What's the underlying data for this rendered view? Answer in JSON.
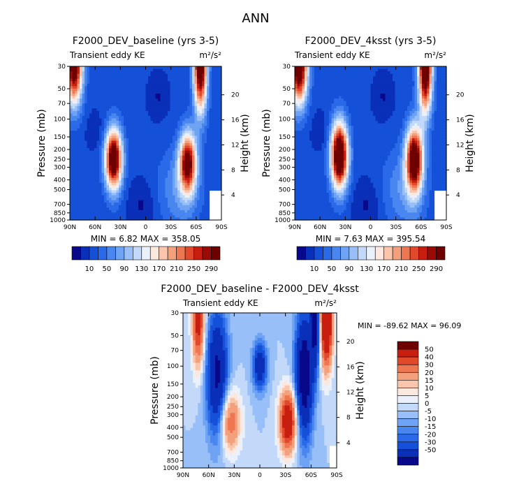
{
  "page_title": "ANN",
  "colors": {
    "scale": [
      "#08088a",
      "#0a2fb8",
      "#1550d8",
      "#2a6ae8",
      "#4a86f0",
      "#6fa3f4",
      "#98bff7",
      "#c3d9f9",
      "#eaf1fb",
      "#fde8df",
      "#f9c6ad",
      "#f4a07c",
      "#ee7650",
      "#e1492d",
      "#c81e10",
      "#9c0a05",
      "#6e0000"
    ],
    "diff_scale": [
      "#08088a",
      "#0a2fb8",
      "#1550d8",
      "#2a6ae8",
      "#4a86f0",
      "#6fa3f4",
      "#98bff7",
      "#c3d9f9",
      "#eaf1fb",
      "#fde8df",
      "#f9c6ad",
      "#f4a07c",
      "#ee7650",
      "#e1492d",
      "#c81e10",
      "#6e0000"
    ]
  },
  "chart_data": [
    {
      "type": "heatmap",
      "title": "F2000_DEV_baseline (yrs 3-5)",
      "subtitle_left": "Transient eddy KE",
      "units": "m²/s²",
      "ylabel": "Pressure (mb)",
      "ylabel_right": "Height (km)",
      "x_ticks": [
        "90N",
        "60N",
        "30N",
        "0",
        "30S",
        "60S",
        "90S"
      ],
      "x_values": [
        90,
        60,
        30,
        0,
        -30,
        -60,
        -90
      ],
      "y_ticks": [
        "30",
        "50",
        "70",
        "100",
        "150",
        "200",
        "250",
        "300",
        "400",
        "500",
        "700",
        "850",
        "1000"
      ],
      "y_values": [
        30,
        50,
        70,
        100,
        150,
        200,
        250,
        300,
        400,
        500,
        700,
        850,
        1000
      ],
      "height_ticks": [
        "20",
        "16",
        "12",
        "8",
        "4"
      ],
      "height_values": [
        20,
        16,
        12,
        8,
        4
      ],
      "stats": "MIN =     6.82   MAX =  358.05",
      "min": 6.82,
      "max": 358.05,
      "colorbar_labels": [
        "10",
        "50",
        "90",
        "130",
        "170",
        "210",
        "250",
        "290"
      ],
      "blobs": [
        {
          "lat": 38,
          "p": 250,
          "amp": 340,
          "slat": 10,
          "sz": 0.2
        },
        {
          "lat": -50,
          "p": 270,
          "amp": 290,
          "slat": 10,
          "sz": 0.2
        },
        {
          "lat": 85,
          "p": 30,
          "amp": 320,
          "slat": 10,
          "sz": 0.25
        },
        {
          "lat": -65,
          "p": 30,
          "amp": 330,
          "slat": 8,
          "sz": 0.3
        }
      ]
    },
    {
      "type": "heatmap",
      "title": "F2000_DEV_4ksst (yrs 3-5)",
      "subtitle_left": "Transient eddy KE",
      "units": "m²/s²",
      "ylabel": "Pressure (mb)",
      "ylabel_right": "Height (km)",
      "x_ticks": [
        "90N",
        "60N",
        "30N",
        "0",
        "30S",
        "60S",
        "90S"
      ],
      "x_values": [
        90,
        60,
        30,
        0,
        -30,
        -60,
        -90
      ],
      "y_ticks": [
        "30",
        "50",
        "70",
        "100",
        "150",
        "200",
        "250",
        "300",
        "400",
        "500",
        "700",
        "850",
        "1000"
      ],
      "y_values": [
        30,
        50,
        70,
        100,
        150,
        200,
        250,
        300,
        400,
        500,
        700,
        850,
        1000
      ],
      "height_ticks": [
        "20",
        "16",
        "12",
        "8",
        "4"
      ],
      "height_values": [
        20,
        16,
        12,
        8,
        4
      ],
      "stats": "MIN =    7.63   MAX =  395.54",
      "min": 7.63,
      "max": 395.54,
      "colorbar_labels": [
        "10",
        "50",
        "90",
        "130",
        "170",
        "210",
        "250",
        "290"
      ],
      "blobs": [
        {
          "lat": 37,
          "p": 230,
          "amp": 370,
          "slat": 10,
          "sz": 0.22
        },
        {
          "lat": -52,
          "p": 250,
          "amp": 330,
          "slat": 10,
          "sz": 0.22
        },
        {
          "lat": 85,
          "p": 30,
          "amp": 340,
          "slat": 10,
          "sz": 0.25
        },
        {
          "lat": -65,
          "p": 30,
          "amp": 360,
          "slat": 8,
          "sz": 0.3
        }
      ]
    },
    {
      "type": "heatmap",
      "title": "F2000_DEV_baseline - F2000_DEV_4ksst",
      "subtitle_left": "Transient eddy KE",
      "units": "m²/s²",
      "ylabel": "Pressure (mb)",
      "ylabel_right": "Height (km)",
      "x_ticks": [
        "90N",
        "60N",
        "30N",
        "0",
        "30S",
        "60S",
        "90S"
      ],
      "x_values": [
        90,
        60,
        30,
        0,
        -30,
        -60,
        -90
      ],
      "y_ticks": [
        "30",
        "50",
        "70",
        "100",
        "150",
        "200",
        "250",
        "300",
        "400",
        "500",
        "700",
        "850",
        "1000"
      ],
      "y_values": [
        30,
        50,
        70,
        100,
        150,
        200,
        250,
        300,
        400,
        500,
        700,
        850,
        1000
      ],
      "height_ticks": [
        "20",
        "16",
        "12",
        "8",
        "4"
      ],
      "height_values": [
        20,
        16,
        12,
        8,
        4
      ],
      "stats": "MIN = -89.62   MAX =   96.09",
      "min": -89.62,
      "max": 96.09,
      "colorbar_labels": [
        "50",
        "40",
        "30",
        "20",
        "15",
        "10",
        "5",
        "0",
        "-5",
        "-10",
        "-15",
        "-20",
        "-30",
        "-50"
      ],
      "colorbar_levels": [
        -50,
        -30,
        -20,
        -15,
        -10,
        -5,
        0,
        5,
        10,
        15,
        20,
        30,
        40,
        50
      ],
      "blobs": [
        {
          "lat": -33,
          "p": 350,
          "amp": 70,
          "slat": 10,
          "sz": 0.2
        },
        {
          "lat": 35,
          "p": 350,
          "amp": 40,
          "slat": 12,
          "sz": 0.2
        },
        {
          "lat": 72,
          "p": 35,
          "amp": 60,
          "slat": 7,
          "sz": 0.3
        },
        {
          "lat": -78,
          "p": 35,
          "amp": 90,
          "slat": 7,
          "sz": 0.3
        },
        {
          "lat": 50,
          "p": 120,
          "amp": -55,
          "slat": 12,
          "sz": 0.4
        },
        {
          "lat": -52,
          "p": 120,
          "amp": -70,
          "slat": 10,
          "sz": 0.4
        },
        {
          "lat": 0,
          "p": 100,
          "amp": -45,
          "slat": 8,
          "sz": 0.15
        },
        {
          "lat": -65,
          "p": 35,
          "amp": -60,
          "slat": 5,
          "sz": 0.3
        }
      ]
    }
  ]
}
